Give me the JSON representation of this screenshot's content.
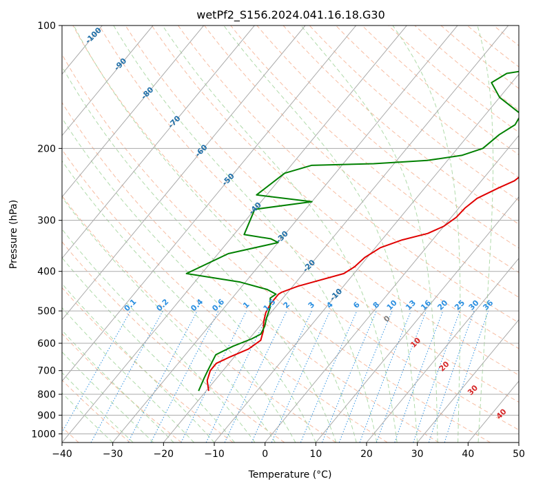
{
  "chart_data": {
    "type": "line",
    "title": "wetPf2_S156.2024.041.16.18.G30",
    "xlabel": "Temperature (°C)",
    "ylabel": "Pressure (hPa)",
    "xlim": [
      -40,
      50
    ],
    "ylim": [
      1050,
      100
    ],
    "y_scale": "log",
    "x_ticks": [
      -40,
      -30,
      -20,
      -10,
      0,
      10,
      20,
      30,
      40,
      50
    ],
    "y_ticks": [
      100,
      200,
      300,
      400,
      500,
      600,
      700,
      800,
      900,
      1000
    ],
    "grid": true,
    "series": [
      {
        "kind": "temperature",
        "color": "#e00000",
        "points": [
          [
            -19.5,
            785
          ],
          [
            -21.5,
            740
          ],
          [
            -22.5,
            700
          ],
          [
            -22.5,
            672
          ],
          [
            -21.0,
            650
          ],
          [
            -18.5,
            620
          ],
          [
            -17.5,
            590
          ],
          [
            -18.5,
            560
          ],
          [
            -20.0,
            530
          ],
          [
            -21.0,
            505
          ],
          [
            -21.5,
            480
          ],
          [
            -21.5,
            455
          ],
          [
            -21.2,
            450
          ],
          [
            -19.0,
            435
          ],
          [
            -12.0,
            405
          ],
          [
            -11.0,
            390
          ],
          [
            -10.5,
            370
          ],
          [
            -9.0,
            350
          ],
          [
            -6.0,
            335
          ],
          [
            -2.0,
            323
          ],
          [
            0.0,
            310
          ],
          [
            1.0,
            295
          ],
          [
            1.2,
            280
          ],
          [
            2.0,
            265
          ],
          [
            4.5,
            250
          ],
          [
            6.5,
            240
          ],
          [
            7.5,
            225
          ],
          [
            8.0,
            210
          ],
          [
            8.0,
            200
          ],
          [
            8.5,
            190
          ],
          [
            9.5,
            180
          ],
          [
            12.0,
            170
          ],
          [
            16.5,
            158
          ],
          [
            21.0,
            148
          ],
          [
            24.5,
            140
          ],
          [
            26.5,
            134
          ],
          [
            26.9,
            128
          ],
          [
            26.8,
            122
          ],
          [
            27.3,
            114
          ],
          [
            28.5,
            109
          ],
          [
            33.0,
            104
          ],
          [
            34.5,
            100
          ]
        ]
      },
      {
        "kind": "dewpoint",
        "color": "#008000",
        "points": [
          [
            -21.5,
            785
          ],
          [
            -22.5,
            730
          ],
          [
            -23.0,
            700
          ],
          [
            -24.0,
            640
          ],
          [
            -22.0,
            610
          ],
          [
            -19.5,
            585
          ],
          [
            -18.5,
            570
          ],
          [
            -19.0,
            545
          ],
          [
            -20.0,
            520
          ],
          [
            -21.0,
            490
          ],
          [
            -22.5,
            465
          ],
          [
            -22.0,
            455
          ],
          [
            -24.5,
            443
          ],
          [
            -31.0,
            425
          ],
          [
            -43.0,
            405
          ],
          [
            -38.0,
            362
          ],
          [
            -30.0,
            340
          ],
          [
            -32.0,
            333
          ],
          [
            -38.0,
            325
          ],
          [
            -40.0,
            282
          ],
          [
            -30.0,
            270
          ],
          [
            -42.0,
            260
          ],
          [
            -40.0,
            230
          ],
          [
            -36.0,
            220
          ],
          [
            -24.0,
            218
          ],
          [
            -14.0,
            214
          ],
          [
            -8.0,
            208
          ],
          [
            -5.0,
            200
          ],
          [
            -4.0,
            185
          ],
          [
            -2.5,
            175
          ],
          [
            -3.0,
            165
          ],
          [
            -10.0,
            150
          ],
          [
            -14.0,
            138
          ],
          [
            -12.5,
            131
          ],
          [
            -8.0,
            128
          ],
          [
            -1.0,
            122
          ],
          [
            -0.5,
            116
          ],
          [
            -7.5,
            108
          ],
          [
            -16.0,
            100
          ]
        ]
      }
    ],
    "mixing_ratio_labels": [
      "0.1",
      "0.2",
      "0.4",
      "0.6",
      "1",
      "1.5",
      "2",
      "3",
      "4",
      "6",
      "8",
      "10",
      "13",
      "16",
      "20",
      "25",
      "30",
      "36"
    ],
    "mixing_ratio_values": [
      0.1,
      0.2,
      0.4,
      0.6,
      1,
      1.5,
      2,
      3,
      4,
      6,
      8,
      10,
      13,
      16,
      20,
      25,
      30,
      36
    ],
    "isotherm_labels": [
      "-100",
      "-90",
      "-80",
      "-70",
      "-60",
      "-50",
      "-40",
      "-30",
      "-20",
      "-10"
    ],
    "isotherm_values": [
      -100,
      -90,
      -80,
      -70,
      -60,
      -50,
      -40,
      -30,
      -20,
      -10
    ],
    "moist_adiabat_labels": [
      "0",
      "10",
      "20",
      "30",
      "40"
    ],
    "moist_adiabat_values": [
      0,
      10,
      20,
      30,
      40
    ],
    "colors": {
      "temperature": "#e00000",
      "dewpoint": "#008000",
      "isotherm_label": "#1f6fa8",
      "mixing_ratio": "#2b8fe0",
      "moist_label": "#d62728",
      "moist_zero_label": "#808080",
      "dry_adiabat": "#f4a582",
      "moist_adiabat": "#a6d6a0",
      "grid": "#aaaaaa"
    }
  }
}
